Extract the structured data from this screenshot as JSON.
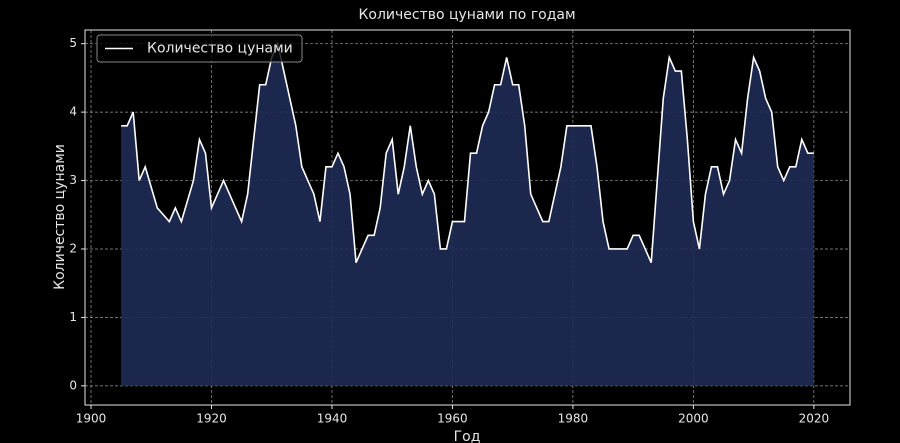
{
  "chart_data": {
    "type": "line",
    "title": "Количество цунами по годам",
    "xlabel": "Год",
    "ylabel": "Количество цунами",
    "x": [
      1905,
      1906,
      1907,
      1908,
      1909,
      1910,
      1911,
      1912,
      1913,
      1914,
      1915,
      1916,
      1917,
      1918,
      1919,
      1920,
      1921,
      1922,
      1923,
      1924,
      1925,
      1926,
      1927,
      1928,
      1929,
      1930,
      1931,
      1932,
      1933,
      1934,
      1935,
      1936,
      1937,
      1938,
      1939,
      1940,
      1941,
      1942,
      1943,
      1944,
      1945,
      1946,
      1947,
      1948,
      1949,
      1950,
      1951,
      1952,
      1953,
      1954,
      1955,
      1956,
      1957,
      1958,
      1959,
      1960,
      1961,
      1962,
      1963,
      1964,
      1965,
      1966,
      1967,
      1968,
      1969,
      1970,
      1971,
      1972,
      1973,
      1974,
      1975,
      1976,
      1977,
      1978,
      1979,
      1980,
      1981,
      1982,
      1983,
      1984,
      1985,
      1986,
      1987,
      1988,
      1989,
      1990,
      1991,
      1992,
      1993,
      1994,
      1995,
      1996,
      1997,
      1998,
      1999,
      2000,
      2001,
      2002,
      2003,
      2004,
      2005,
      2006,
      2007,
      2008,
      2009,
      2010,
      2011,
      2012,
      2013,
      2014,
      2015,
      2016,
      2017,
      2018,
      2019,
      2020
    ],
    "series": [
      {
        "name": "Количество цунами",
        "color": "#ffffff",
        "fill": "#1f2b57",
        "values": [
          3.8,
          3.8,
          4.0,
          3.0,
          3.2,
          2.9,
          2.6,
          2.5,
          2.4,
          2.6,
          2.4,
          2.7,
          3.0,
          3.6,
          3.4,
          2.6,
          2.8,
          3.0,
          2.8,
          2.6,
          2.4,
          2.8,
          3.6,
          4.4,
          4.4,
          4.8,
          5.0,
          4.6,
          4.2,
          3.8,
          3.2,
          3.0,
          2.8,
          2.4,
          3.2,
          3.2,
          3.4,
          3.2,
          2.8,
          1.8,
          2.0,
          2.2,
          2.2,
          2.6,
          3.4,
          3.6,
          2.8,
          3.2,
          3.8,
          3.2,
          2.8,
          3.0,
          2.8,
          2.0,
          2.0,
          2.4,
          2.4,
          2.4,
          3.4,
          3.4,
          3.8,
          4.0,
          4.4,
          4.4,
          4.8,
          4.4,
          4.4,
          3.8,
          2.8,
          2.6,
          2.4,
          2.4,
          2.8,
          3.2,
          3.8,
          3.8,
          3.8,
          3.8,
          3.8,
          3.2,
          2.4,
          2.0,
          2.0,
          2.0,
          2.0,
          2.2,
          2.2,
          2.0,
          1.8,
          3.0,
          4.2,
          4.8,
          4.6,
          4.6,
          3.6,
          2.4,
          2.0,
          2.8,
          3.2,
          3.2,
          2.8,
          3.0,
          3.6,
          3.4,
          4.2,
          4.8,
          4.6,
          4.2,
          4.0,
          3.2,
          3.0,
          3.2,
          3.2,
          3.6,
          3.4,
          3.4
        ]
      }
    ],
    "xlim": [
      1899,
      2026
    ],
    "ylim": [
      -0.28,
      5.2
    ],
    "xticks": [
      1900,
      1920,
      1940,
      1960,
      1980,
      2000,
      2020
    ],
    "yticks": [
      0,
      1,
      2,
      3,
      4,
      5
    ],
    "grid": true,
    "legend": "upper left"
  }
}
